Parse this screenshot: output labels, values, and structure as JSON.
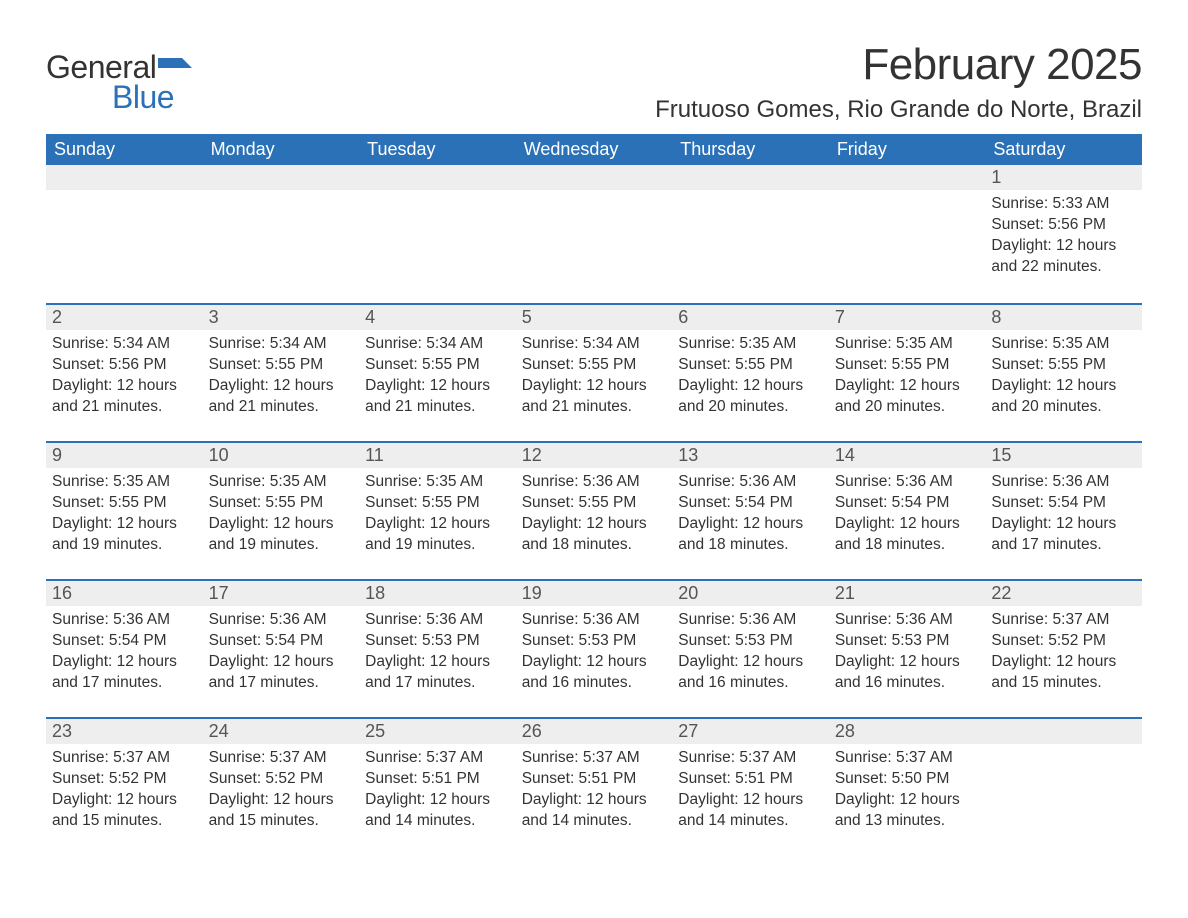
{
  "brand": {
    "general": "General",
    "blue": "Blue",
    "flag_color": "#2b71b8"
  },
  "title": "February 2025",
  "location": "Frutuoso Gomes, Rio Grande do Norte, Brazil",
  "colors": {
    "header_bg": "#2b71b8",
    "header_text": "#ffffff",
    "row_border": "#2b71b8",
    "daynum_bg": "#eeeeee",
    "body_bg": "#ffffff",
    "text": "#333333"
  },
  "weekdays": [
    "Sunday",
    "Monday",
    "Tuesday",
    "Wednesday",
    "Thursday",
    "Friday",
    "Saturday"
  ],
  "weeks": [
    [
      null,
      null,
      null,
      null,
      null,
      null,
      {
        "n": "1",
        "sunrise": "Sunrise: 5:33 AM",
        "sunset": "Sunset: 5:56 PM",
        "daylight": "Daylight: 12 hours and 22 minutes."
      }
    ],
    [
      {
        "n": "2",
        "sunrise": "Sunrise: 5:34 AM",
        "sunset": "Sunset: 5:56 PM",
        "daylight": "Daylight: 12 hours and 21 minutes."
      },
      {
        "n": "3",
        "sunrise": "Sunrise: 5:34 AM",
        "sunset": "Sunset: 5:55 PM",
        "daylight": "Daylight: 12 hours and 21 minutes."
      },
      {
        "n": "4",
        "sunrise": "Sunrise: 5:34 AM",
        "sunset": "Sunset: 5:55 PM",
        "daylight": "Daylight: 12 hours and 21 minutes."
      },
      {
        "n": "5",
        "sunrise": "Sunrise: 5:34 AM",
        "sunset": "Sunset: 5:55 PM",
        "daylight": "Daylight: 12 hours and 21 minutes."
      },
      {
        "n": "6",
        "sunrise": "Sunrise: 5:35 AM",
        "sunset": "Sunset: 5:55 PM",
        "daylight": "Daylight: 12 hours and 20 minutes."
      },
      {
        "n": "7",
        "sunrise": "Sunrise: 5:35 AM",
        "sunset": "Sunset: 5:55 PM",
        "daylight": "Daylight: 12 hours and 20 minutes."
      },
      {
        "n": "8",
        "sunrise": "Sunrise: 5:35 AM",
        "sunset": "Sunset: 5:55 PM",
        "daylight": "Daylight: 12 hours and 20 minutes."
      }
    ],
    [
      {
        "n": "9",
        "sunrise": "Sunrise: 5:35 AM",
        "sunset": "Sunset: 5:55 PM",
        "daylight": "Daylight: 12 hours and 19 minutes."
      },
      {
        "n": "10",
        "sunrise": "Sunrise: 5:35 AM",
        "sunset": "Sunset: 5:55 PM",
        "daylight": "Daylight: 12 hours and 19 minutes."
      },
      {
        "n": "11",
        "sunrise": "Sunrise: 5:35 AM",
        "sunset": "Sunset: 5:55 PM",
        "daylight": "Daylight: 12 hours and 19 minutes."
      },
      {
        "n": "12",
        "sunrise": "Sunrise: 5:36 AM",
        "sunset": "Sunset: 5:55 PM",
        "daylight": "Daylight: 12 hours and 18 minutes."
      },
      {
        "n": "13",
        "sunrise": "Sunrise: 5:36 AM",
        "sunset": "Sunset: 5:54 PM",
        "daylight": "Daylight: 12 hours and 18 minutes."
      },
      {
        "n": "14",
        "sunrise": "Sunrise: 5:36 AM",
        "sunset": "Sunset: 5:54 PM",
        "daylight": "Daylight: 12 hours and 18 minutes."
      },
      {
        "n": "15",
        "sunrise": "Sunrise: 5:36 AM",
        "sunset": "Sunset: 5:54 PM",
        "daylight": "Daylight: 12 hours and 17 minutes."
      }
    ],
    [
      {
        "n": "16",
        "sunrise": "Sunrise: 5:36 AM",
        "sunset": "Sunset: 5:54 PM",
        "daylight": "Daylight: 12 hours and 17 minutes."
      },
      {
        "n": "17",
        "sunrise": "Sunrise: 5:36 AM",
        "sunset": "Sunset: 5:54 PM",
        "daylight": "Daylight: 12 hours and 17 minutes."
      },
      {
        "n": "18",
        "sunrise": "Sunrise: 5:36 AM",
        "sunset": "Sunset: 5:53 PM",
        "daylight": "Daylight: 12 hours and 17 minutes."
      },
      {
        "n": "19",
        "sunrise": "Sunrise: 5:36 AM",
        "sunset": "Sunset: 5:53 PM",
        "daylight": "Daylight: 12 hours and 16 minutes."
      },
      {
        "n": "20",
        "sunrise": "Sunrise: 5:36 AM",
        "sunset": "Sunset: 5:53 PM",
        "daylight": "Daylight: 12 hours and 16 minutes."
      },
      {
        "n": "21",
        "sunrise": "Sunrise: 5:36 AM",
        "sunset": "Sunset: 5:53 PM",
        "daylight": "Daylight: 12 hours and 16 minutes."
      },
      {
        "n": "22",
        "sunrise": "Sunrise: 5:37 AM",
        "sunset": "Sunset: 5:52 PM",
        "daylight": "Daylight: 12 hours and 15 minutes."
      }
    ],
    [
      {
        "n": "23",
        "sunrise": "Sunrise: 5:37 AM",
        "sunset": "Sunset: 5:52 PM",
        "daylight": "Daylight: 12 hours and 15 minutes."
      },
      {
        "n": "24",
        "sunrise": "Sunrise: 5:37 AM",
        "sunset": "Sunset: 5:52 PM",
        "daylight": "Daylight: 12 hours and 15 minutes."
      },
      {
        "n": "25",
        "sunrise": "Sunrise: 5:37 AM",
        "sunset": "Sunset: 5:51 PM",
        "daylight": "Daylight: 12 hours and 14 minutes."
      },
      {
        "n": "26",
        "sunrise": "Sunrise: 5:37 AM",
        "sunset": "Sunset: 5:51 PM",
        "daylight": "Daylight: 12 hours and 14 minutes."
      },
      {
        "n": "27",
        "sunrise": "Sunrise: 5:37 AM",
        "sunset": "Sunset: 5:51 PM",
        "daylight": "Daylight: 12 hours and 14 minutes."
      },
      {
        "n": "28",
        "sunrise": "Sunrise: 5:37 AM",
        "sunset": "Sunset: 5:50 PM",
        "daylight": "Daylight: 12 hours and 13 minutes."
      },
      null
    ]
  ]
}
